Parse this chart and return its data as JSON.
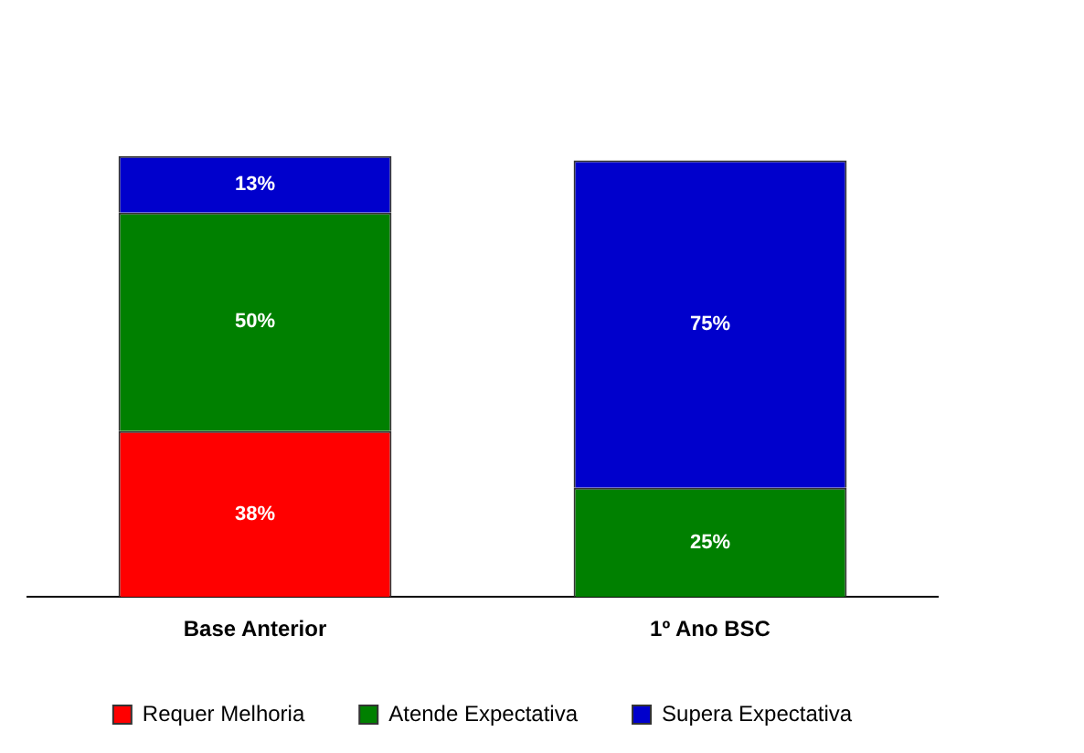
{
  "chart_data": {
    "type": "bar",
    "stacked": true,
    "tick_labels": "x",
    "categories": [
      "Base Anterior",
      "1º Ano BSC"
    ],
    "series": [
      {
        "name": "Requer Melhoria",
        "color": "#ff0000",
        "values": [
          38,
          null
        ],
        "value_labels": [
          "38%",
          null
        ]
      },
      {
        "name": "Atende Expectativa",
        "color": "#008000",
        "values": [
          50,
          25
        ],
        "value_labels": [
          "50%",
          "25%"
        ]
      },
      {
        "name": "Supera Expectativa",
        "color": "#0000cc",
        "values": [
          13,
          75
        ],
        "value_labels": [
          "13%",
          "75%"
        ]
      }
    ],
    "legend": "bottom",
    "grid": false
  }
}
